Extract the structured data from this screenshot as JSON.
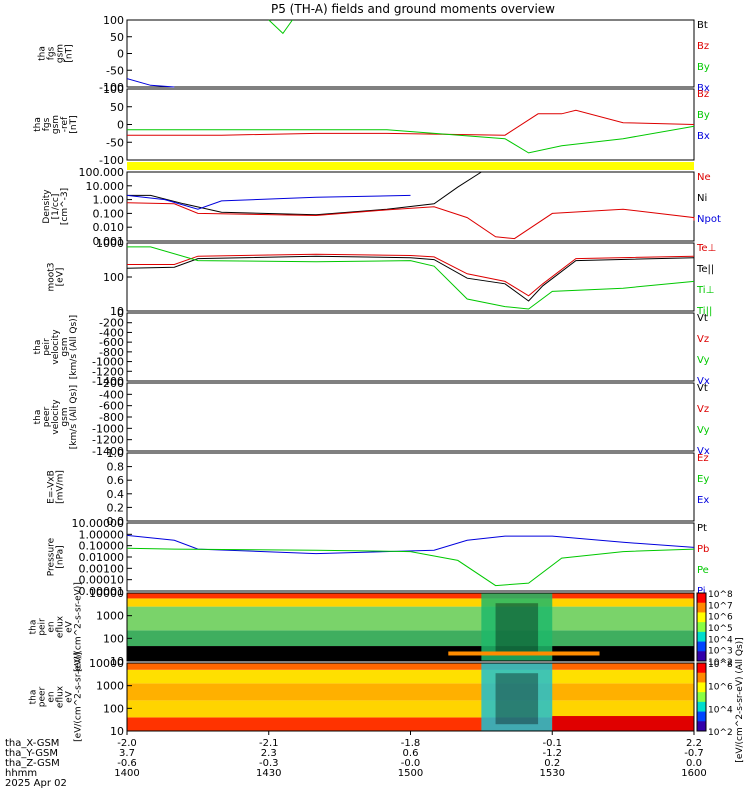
{
  "title": "P5 (TH-A) fields and ground moments overview",
  "colors": {
    "black": "#000000",
    "red": "#dd0000",
    "green": "#00c800",
    "blue": "#0000dd",
    "yellow": "#ffff00",
    "orange": "#ff8c00"
  },
  "panels": [
    {
      "id": "p1",
      "ylabel": [
        "tha",
        "fgs",
        "gsm",
        "[nT]"
      ],
      "yticks": [
        "100",
        "50",
        "0",
        "-50",
        "-100"
      ],
      "legend": [
        {
          "text": "Bt",
          "color": "black"
        },
        {
          "text": "Bz",
          "color": "red"
        },
        {
          "text": "By",
          "color": "green"
        },
        {
          "text": "Bx",
          "color": "blue"
        }
      ]
    },
    {
      "id": "p2",
      "ylabel": [
        "tha",
        "fgs",
        "gsm",
        "-ref",
        "[nT]"
      ],
      "yticks": [
        "100",
        "50",
        "0",
        "-50",
        "-100"
      ],
      "legend": [
        {
          "text": "Bz",
          "color": "red"
        },
        {
          "text": "By",
          "color": "green"
        },
        {
          "text": "Bx",
          "color": "blue"
        }
      ]
    },
    {
      "id": "p3",
      "ylabel": [
        "Density",
        "[1/cc]",
        "[cm^-3]"
      ],
      "yticks": [
        "100.000",
        "10.000",
        "1.000",
        "0.100",
        "0.010",
        "0.001"
      ],
      "legend": [
        {
          "text": "Ne",
          "color": "red"
        },
        {
          "text": "Ni",
          "color": "black"
        },
        {
          "text": "Npot",
          "color": "blue"
        }
      ]
    },
    {
      "id": "p4",
      "ylabel": [
        "moot3",
        "[eV]"
      ],
      "yticks": [
        "1000",
        "100",
        "10"
      ],
      "legend": [
        {
          "text": "Te⊥",
          "color": "red"
        },
        {
          "text": "Te||",
          "color": "black"
        },
        {
          "text": "Ti⊥",
          "color": "green"
        },
        {
          "text": "Ti||",
          "color": "green"
        }
      ]
    },
    {
      "id": "p5",
      "ylabel": [
        "tha",
        "peir",
        "velocity",
        "gsm",
        "[km/s (All Qs)]"
      ],
      "yticks": [
        "0",
        "-200",
        "-400",
        "-600",
        "-800",
        "-1000",
        "-1200",
        "-1400"
      ],
      "legend": [
        {
          "text": "Vt",
          "color": "black"
        },
        {
          "text": "Vz",
          "color": "red"
        },
        {
          "text": "Vy",
          "color": "green"
        },
        {
          "text": "Vx",
          "color": "blue"
        }
      ]
    },
    {
      "id": "p6",
      "ylabel": [
        "tha",
        "peer",
        "velocity",
        "gsm",
        "[km/s (All Qs)]"
      ],
      "yticks": [
        "-200",
        "-400",
        "-600",
        "-800",
        "-1000",
        "-1200",
        "-1400"
      ],
      "legend": [
        {
          "text": "Vt",
          "color": "black"
        },
        {
          "text": "Vz",
          "color": "red"
        },
        {
          "text": "Vy",
          "color": "green"
        },
        {
          "text": "Vx",
          "color": "blue"
        }
      ]
    },
    {
      "id": "p7",
      "ylabel": [
        "E=-VxB",
        "[mV/m]"
      ],
      "yticks": [
        "1.0",
        "0.8",
        "0.6",
        "0.4",
        "0.2",
        "0.0"
      ],
      "legend": [
        {
          "text": "Ez",
          "color": "red"
        },
        {
          "text": "Ey",
          "color": "green"
        },
        {
          "text": "Ex",
          "color": "blue"
        }
      ]
    },
    {
      "id": "p8",
      "ylabel": [
        "Pressure",
        "[nPa]"
      ],
      "yticks": [
        "10.00000",
        "1.00000",
        "0.10000",
        "0.01000",
        "0.00100",
        "0.00010",
        "0.00001"
      ],
      "legend": [
        {
          "text": "Pt",
          "color": "black"
        },
        {
          "text": "Pb",
          "color": "red"
        },
        {
          "text": "Pe",
          "color": "green"
        },
        {
          "text": "Pi",
          "color": "blue"
        }
      ]
    },
    {
      "id": "p9",
      "ylabel": [
        "tha",
        "peir",
        "en",
        "eflux",
        "eV",
        "[eV/(cm^2-s-sr-eV)]"
      ],
      "yticks": [
        "10000",
        "1000",
        "100",
        "10"
      ]
    },
    {
      "id": "p10",
      "ylabel": [
        "tha",
        "peer",
        "en",
        "eflux",
        "eV",
        "[eV/(cm^2-s-sr-eV)]"
      ],
      "yticks": [
        "10000",
        "1000",
        "100",
        "10"
      ]
    }
  ],
  "colorbar": {
    "ticks1": [
      "10^8",
      "10^7",
      "10^6",
      "10^5",
      "10^4",
      "10^3",
      "10^2"
    ],
    "ticks2": [
      "10^8",
      "10^6",
      "10^4",
      "10^2"
    ],
    "label": "[eV/(cm^2-s-sr-eV) (All Qs)]"
  },
  "xaxis": {
    "row_labels": [
      "tha_X-GSM",
      "tha_Y-GSM",
      "tha_Z-GSM",
      "hhmm",
      "2025 Apr 02"
    ],
    "columns": [
      {
        "x": "-2.0",
        "y": "3.7",
        "z": "-0.6",
        "t": "1400"
      },
      {
        "x": "-2.1",
        "y": "2.3",
        "z": "-0.3",
        "t": "1430"
      },
      {
        "x": "-1.8",
        "y": "0.6",
        "z": "-0.0",
        "t": "1500"
      },
      {
        "x": "-0.1",
        "y": "-1.2",
        "z": "0.2",
        "t": "1530"
      },
      {
        "x": "2.2",
        "y": "-0.7",
        "z": "0.0",
        "t": "1600"
      }
    ]
  },
  "chart_data": {
    "type": "line",
    "title": "P5 (TH-A) fields and ground moments overview",
    "x_time_ticks": [
      "1400",
      "1430",
      "1500",
      "1530",
      "1600"
    ],
    "date": "2025 Apr 02",
    "panels": [
      {
        "name": "tha fgs gsm",
        "unit": "nT",
        "ylim": [
          -100,
          100
        ],
        "series": [
          {
            "name": "Bx",
            "points": [
              [
                1400,
                -75
              ],
              [
                1405,
                -95
              ],
              [
                1410,
                -100
              ]
            ]
          },
          {
            "name": "By",
            "points": [
              [
                1430,
                100
              ],
              [
                1433,
                60
              ],
              [
                1435,
                100
              ]
            ]
          }
        ]
      },
      {
        "name": "tha fgs gsm -ref",
        "unit": "nT",
        "ylim": [
          -100,
          100
        ],
        "series": [
          {
            "name": "Bz",
            "points": [
              [
                1400,
                -30
              ],
              [
                1420,
                -30
              ],
              [
                1440,
                -25
              ],
              [
                1448,
                -25
              ],
              [
                1455,
                -25
              ],
              [
                1520,
                -30
              ],
              [
                1527,
                30
              ],
              [
                1532,
                30
              ],
              [
                1535,
                40
              ],
              [
                1545,
                5
              ],
              [
                1600,
                0
              ]
            ]
          },
          {
            "name": "By",
            "points": [
              [
                1400,
                -15
              ],
              [
                1420,
                -15
              ],
              [
                1440,
                -15
              ],
              [
                1448,
                -15
              ],
              [
                1455,
                -15
              ],
              [
                1520,
                -40
              ],
              [
                1525,
                -80
              ],
              [
                1532,
                -60
              ],
              [
                1545,
                -40
              ],
              [
                1600,
                -5
              ]
            ]
          }
        ]
      },
      {
        "name": "Density",
        "unit": "cm^-3",
        "ylim": [
          0.001,
          100
        ],
        "log": true,
        "series": [
          {
            "name": "Ni",
            "points": [
              [
                1400,
                2
              ],
              [
                1405,
                2
              ],
              [
                1412,
                0.5
              ],
              [
                1420,
                0.12
              ],
              [
                1440,
                0.08
              ],
              [
                1455,
                0.2
              ],
              [
                1505,
                0.5
              ],
              [
                1510,
                8
              ],
              [
                1515,
                100
              ]
            ]
          },
          {
            "name": "Ne",
            "points": [
              [
                1400,
                0.6
              ],
              [
                1410,
                0.5
              ],
              [
                1415,
                0.1
              ],
              [
                1440,
                0.07
              ],
              [
                1455,
                0.18
              ],
              [
                1505,
                0.3
              ],
              [
                1512,
                0.05
              ],
              [
                1518,
                0.002
              ],
              [
                1522,
                0.0015
              ],
              [
                1530,
                0.1
              ],
              [
                1545,
                0.2
              ],
              [
                1560,
                0.05
              ],
              [
                1600,
                0.03
              ]
            ]
          },
          {
            "name": "Npot",
            "points": [
              [
                1400,
                2
              ],
              [
                1408,
                1
              ],
              [
                1415,
                0.2
              ],
              [
                1420,
                0.8
              ],
              [
                1440,
                1.5
              ],
              [
                1500,
                2
              ]
            ]
          }
        ]
      },
      {
        "name": "moot3",
        "unit": "eV",
        "ylim": [
          10,
          5000
        ],
        "log": true,
        "series": [
          {
            "name": "Te||",
            "points": [
              [
                1400,
                500
              ],
              [
                1410,
                550
              ],
              [
                1415,
                1200
              ],
              [
                1440,
                1500
              ],
              [
                1500,
                1300
              ],
              [
                1505,
                1100
              ],
              [
                1512,
                200
              ],
              [
                1520,
                120
              ],
              [
                1525,
                25
              ],
              [
                1528,
                100
              ],
              [
                1535,
                1000
              ],
              [
                1600,
                1300
              ]
            ]
          },
          {
            "name": "Te⊥",
            "points": [
              [
                1400,
                700
              ],
              [
                1410,
                700
              ],
              [
                1415,
                1500
              ],
              [
                1440,
                1800
              ],
              [
                1500,
                1600
              ],
              [
                1505,
                1400
              ],
              [
                1512,
                300
              ],
              [
                1520,
                150
              ],
              [
                1525,
                40
              ],
              [
                1528,
                120
              ],
              [
                1535,
                1200
              ],
              [
                1600,
                1500
              ]
            ]
          },
          {
            "name": "Ti⊥",
            "points": [
              [
                1400,
                3500
              ],
              [
                1405,
                3500
              ],
              [
                1415,
                1000
              ],
              [
                1440,
                900
              ],
              [
                1500,
                1000
              ],
              [
                1505,
                600
              ],
              [
                1512,
                30
              ],
              [
                1520,
                15
              ],
              [
                1525,
                12
              ],
              [
                1530,
                60
              ],
              [
                1545,
                80
              ],
              [
                1600,
                150
              ]
            ]
          }
        ]
      },
      {
        "name": "tha peir velocity gsm",
        "unit": "km/s (All Qs)",
        "ylim": [
          -1400,
          0
        ],
        "series": []
      },
      {
        "name": "tha peer velocity gsm",
        "unit": "km/s (All Qs)",
        "ylim": [
          -1400,
          -200
        ],
        "series": []
      },
      {
        "name": "E=-VxB",
        "unit": "mV/m",
        "ylim": [
          0,
          1
        ],
        "series": []
      },
      {
        "name": "Pressure",
        "unit": "nPa",
        "ylim": [
          1e-05,
          10
        ],
        "log": true,
        "series": [
          {
            "name": "Pi",
            "points": [
              [
                1400,
                0.8
              ],
              [
                1410,
                0.3
              ],
              [
                1415,
                0.05
              ],
              [
                1440,
                0.02
              ],
              [
                1505,
                0.04
              ],
              [
                1512,
                0.3
              ],
              [
                1520,
                0.7
              ],
              [
                1530,
                0.7
              ],
              [
                1545,
                0.2
              ],
              [
                1600,
                0.07
              ]
            ]
          },
          {
            "name": "Pe",
            "points": [
              [
                1400,
                0.06
              ],
              [
                1410,
                0.05
              ],
              [
                1440,
                0.04
              ],
              [
                1500,
                0.03
              ],
              [
                1510,
                0.005
              ],
              [
                1518,
                3e-05
              ],
              [
                1525,
                5e-05
              ],
              [
                1532,
                0.008
              ],
              [
                1545,
                0.03
              ],
              [
                1600,
                0.05
              ]
            ]
          }
        ]
      }
    ]
  }
}
